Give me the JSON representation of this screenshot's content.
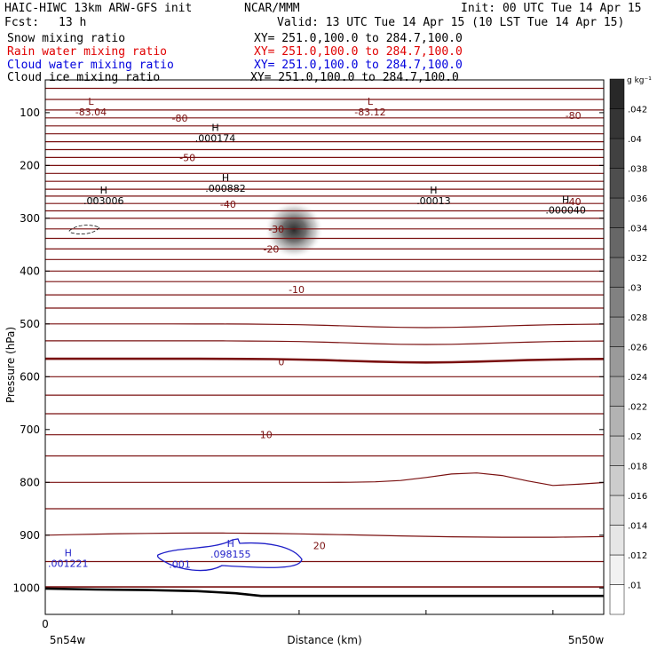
{
  "header": {
    "title_left": "HAIC-HIWC 13km ARW-GFS init",
    "center_org": "NCAR/MMM",
    "init": "Init: 00 UTC Tue 14 Apr 15",
    "fcst_label": "Fcst:",
    "fcst_value": "13 h",
    "valid": "Valid: 13 UTC Tue 14 Apr 15 (10 LST Tue 14 Apr 15)"
  },
  "legend": [
    {
      "name": "Snow mixing ratio",
      "xy": "XY= 251.0,100.0 to 284.7,100.0",
      "color": "#000000"
    },
    {
      "name": "Rain water mixing ratio",
      "xy": "XY= 251.0,100.0 to 284.7,100.0",
      "color": "#e00000"
    },
    {
      "name": "Cloud water mixing ratio",
      "xy": "XY= 251.0,100.0 to 284.7,100.0",
      "color": "#0000dd"
    },
    {
      "name": "Cloud ice mixing ratio",
      "xy": "XY= 251.0,100.0 to 284.7,100.0",
      "color": "#000000"
    }
  ],
  "colors": {
    "temperature_contour": "#7a1010",
    "cloud_water_contour": "#1f1fc8",
    "frame": "#000000"
  },
  "chart_data": {
    "type": "heatmap",
    "xlabel": "Distance (km)",
    "ylabel": "Pressure (hPa)",
    "x_range": [
      0,
      220
    ],
    "x_tick_values": [
      0,
      50,
      100,
      150,
      200
    ],
    "x_tick_labels": [
      "0",
      "",
      "",
      "",
      ""
    ],
    "x_endpoint_labels": [
      "5n54w",
      "5n50w"
    ],
    "y_range": [
      1050,
      38
    ],
    "y_ticks": [
      100,
      200,
      300,
      400,
      500,
      600,
      700,
      800,
      900,
      1000
    ],
    "colorbar": {
      "unit": "g kg⁻¹",
      "levels": [
        ".01",
        ".012",
        ".014",
        ".016",
        ".018",
        ".02",
        ".022",
        ".024",
        ".026",
        ".028",
        ".03",
        ".032",
        ".034",
        ".036",
        ".038",
        ".04",
        ".042"
      ],
      "min": 0.01,
      "max": 0.044
    },
    "temperature_levels": [
      {
        "label": "-80",
        "x": 53,
        "p": 110
      },
      {
        "label": "-80",
        "x": 208,
        "p": 105
      },
      {
        "label": "-50",
        "x": 56,
        "p": 185
      },
      {
        "label": "-40",
        "x": 72,
        "p": 273
      },
      {
        "label": "-40",
        "x": 208,
        "p": 268
      },
      {
        "label": "-30",
        "x": 91,
        "p": 320
      },
      {
        "label": "-20",
        "x": 89,
        "p": 358
      },
      {
        "label": "-10",
        "x": 99,
        "p": 435
      },
      {
        "label": "0",
        "x": 93,
        "p": 572
      },
      {
        "label": "10",
        "x": 87,
        "p": 710
      },
      {
        "label": "20",
        "x": 108,
        "p": 920
      }
    ],
    "extrema": [
      {
        "type": "L",
        "value": "-83.04",
        "x": 18,
        "p": 95
      },
      {
        "type": "L",
        "value": "-83.12",
        "x": 128,
        "p": 95
      },
      {
        "type": "H",
        "value": ".000174",
        "x": 67,
        "p": 145
      },
      {
        "type": "H",
        "value": ".003006",
        "x": 23,
        "p": 263
      },
      {
        "type": "H",
        "value": ".000882",
        "x": 71,
        "p": 240
      },
      {
        "type": "H",
        "value": ".00013",
        "x": 153,
        "p": 263
      },
      {
        "type": "H",
        "value": ".000040",
        "x": 205,
        "p": 281
      },
      {
        "type": "H",
        "value": ".001221",
        "x": 9,
        "p": 950
      },
      {
        "type": "H",
        "value": ".098155",
        "x": 73,
        "p": 932
      }
    ],
    "cloud_water_label": {
      "value": ".001",
      "x": 53,
      "p": 955
    },
    "snow_max": {
      "x": 98,
      "p": 322,
      "value": 0.044
    }
  }
}
